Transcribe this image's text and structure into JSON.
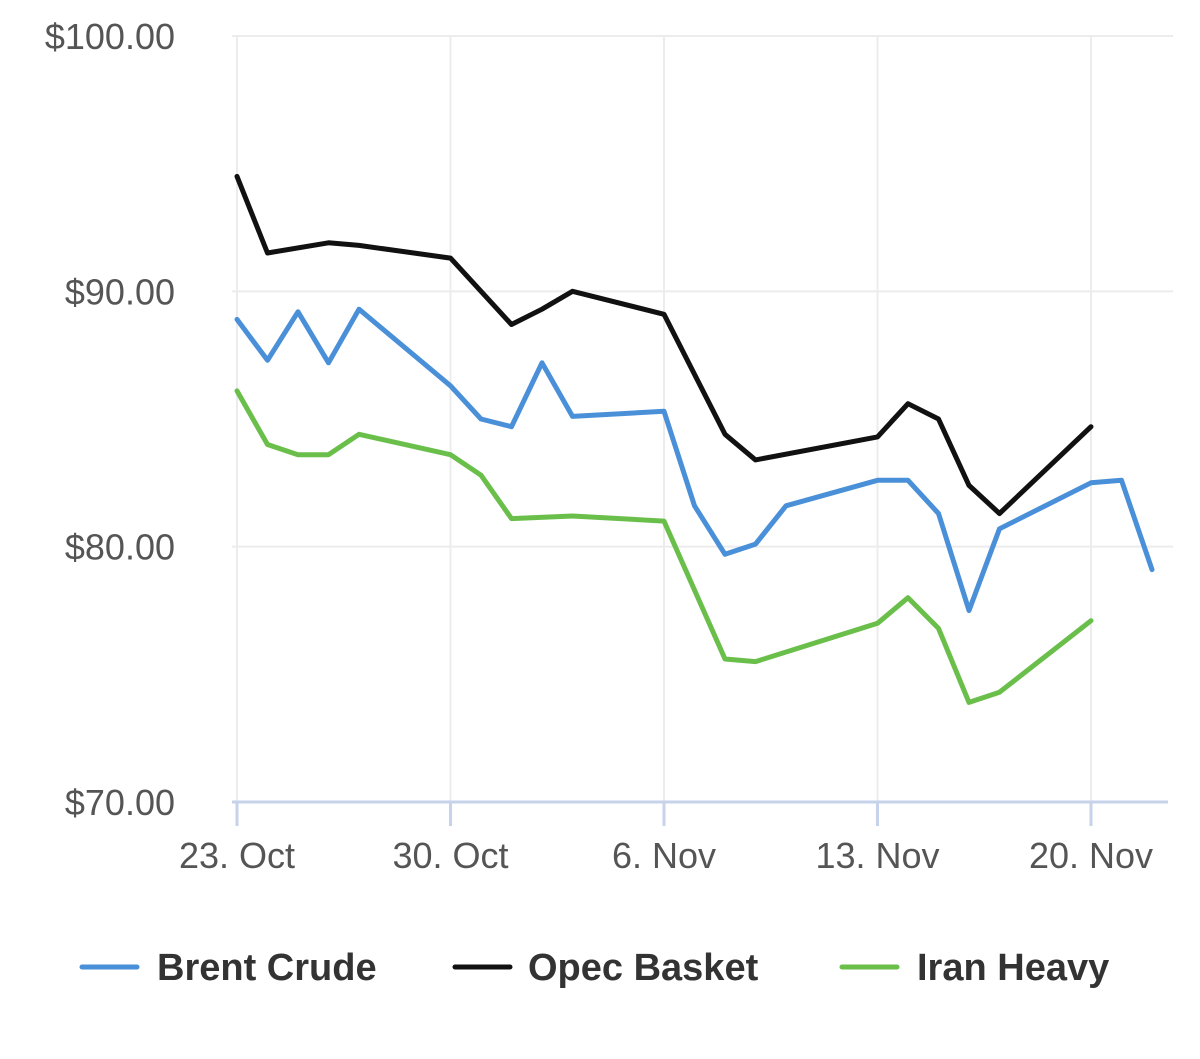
{
  "chart_data": {
    "type": "line",
    "title": "",
    "xlabel": "",
    "ylabel": "",
    "ylim": [
      70,
      100
    ],
    "xlim": [
      "2023-10-23",
      "2023-11-22"
    ],
    "grid": true,
    "legend_position": "bottom",
    "y_ticks": [
      {
        "value": 100,
        "label": "$100.00"
      },
      {
        "value": 90,
        "label": "$90.00"
      },
      {
        "value": 80,
        "label": "$80.00"
      },
      {
        "value": 70,
        "label": "$70.00"
      }
    ],
    "x_ticks": [
      {
        "date": "2023-10-23",
        "label": "23. Oct"
      },
      {
        "date": "2023-10-30",
        "label": "30. Oct"
      },
      {
        "date": "2023-11-06",
        "label": "6. Nov"
      },
      {
        "date": "2023-11-13",
        "label": "13. Nov"
      },
      {
        "date": "2023-11-20",
        "label": "20. Nov"
      }
    ],
    "series": [
      {
        "name": "Brent Crude",
        "color": "#4a90d9",
        "points": [
          [
            "2023-10-23",
            88.9
          ],
          [
            "2023-10-24",
            87.3
          ],
          [
            "2023-10-25",
            89.2
          ],
          [
            "2023-10-26",
            87.2
          ],
          [
            "2023-10-27",
            89.3
          ],
          [
            "2023-10-30",
            86.3
          ],
          [
            "2023-10-31",
            85.0
          ],
          [
            "2023-11-01",
            84.7
          ],
          [
            "2023-11-02",
            87.2
          ],
          [
            "2023-11-03",
            85.1
          ],
          [
            "2023-11-06",
            85.3
          ],
          [
            "2023-11-07",
            81.6
          ],
          [
            "2023-11-08",
            79.7
          ],
          [
            "2023-11-09",
            80.1
          ],
          [
            "2023-11-10",
            81.6
          ],
          [
            "2023-11-13",
            82.6
          ],
          [
            "2023-11-14",
            82.6
          ],
          [
            "2023-11-15",
            81.3
          ],
          [
            "2023-11-16",
            77.5
          ],
          [
            "2023-11-17",
            80.7
          ],
          [
            "2023-11-20",
            82.5
          ],
          [
            "2023-11-21",
            82.6
          ],
          [
            "2023-11-22",
            79.1
          ]
        ]
      },
      {
        "name": "Opec Basket",
        "color": "#111111",
        "points": [
          [
            "2023-10-23",
            94.5
          ],
          [
            "2023-10-24",
            91.5
          ],
          [
            "2023-10-26",
            91.9
          ],
          [
            "2023-10-27",
            91.8
          ],
          [
            "2023-10-30",
            91.3
          ],
          [
            "2023-11-01",
            88.7
          ],
          [
            "2023-11-02",
            89.3
          ],
          [
            "2023-11-03",
            90.0
          ],
          [
            "2023-11-06",
            89.1
          ],
          [
            "2023-11-08",
            84.4
          ],
          [
            "2023-11-09",
            83.4
          ],
          [
            "2023-11-13",
            84.3
          ],
          [
            "2023-11-14",
            85.6
          ],
          [
            "2023-11-15",
            85.0
          ],
          [
            "2023-11-16",
            82.4
          ],
          [
            "2023-11-17",
            81.3
          ],
          [
            "2023-11-20",
            84.7
          ]
        ]
      },
      {
        "name": "Iran Heavy",
        "color": "#6abf4b",
        "points": [
          [
            "2023-10-23",
            86.1
          ],
          [
            "2023-10-24",
            84.0
          ],
          [
            "2023-10-25",
            83.6
          ],
          [
            "2023-10-26",
            83.6
          ],
          [
            "2023-10-27",
            84.4
          ],
          [
            "2023-10-30",
            83.6
          ],
          [
            "2023-10-31",
            82.8
          ],
          [
            "2023-11-01",
            81.1
          ],
          [
            "2023-11-03",
            81.2
          ],
          [
            "2023-11-06",
            81.0
          ],
          [
            "2023-11-08",
            75.6
          ],
          [
            "2023-11-09",
            75.5
          ],
          [
            "2023-11-13",
            77.0
          ],
          [
            "2023-11-14",
            78.0
          ],
          [
            "2023-11-15",
            76.8
          ],
          [
            "2023-11-16",
            73.9
          ],
          [
            "2023-11-17",
            74.3
          ],
          [
            "2023-11-20",
            77.1
          ]
        ]
      }
    ]
  }
}
